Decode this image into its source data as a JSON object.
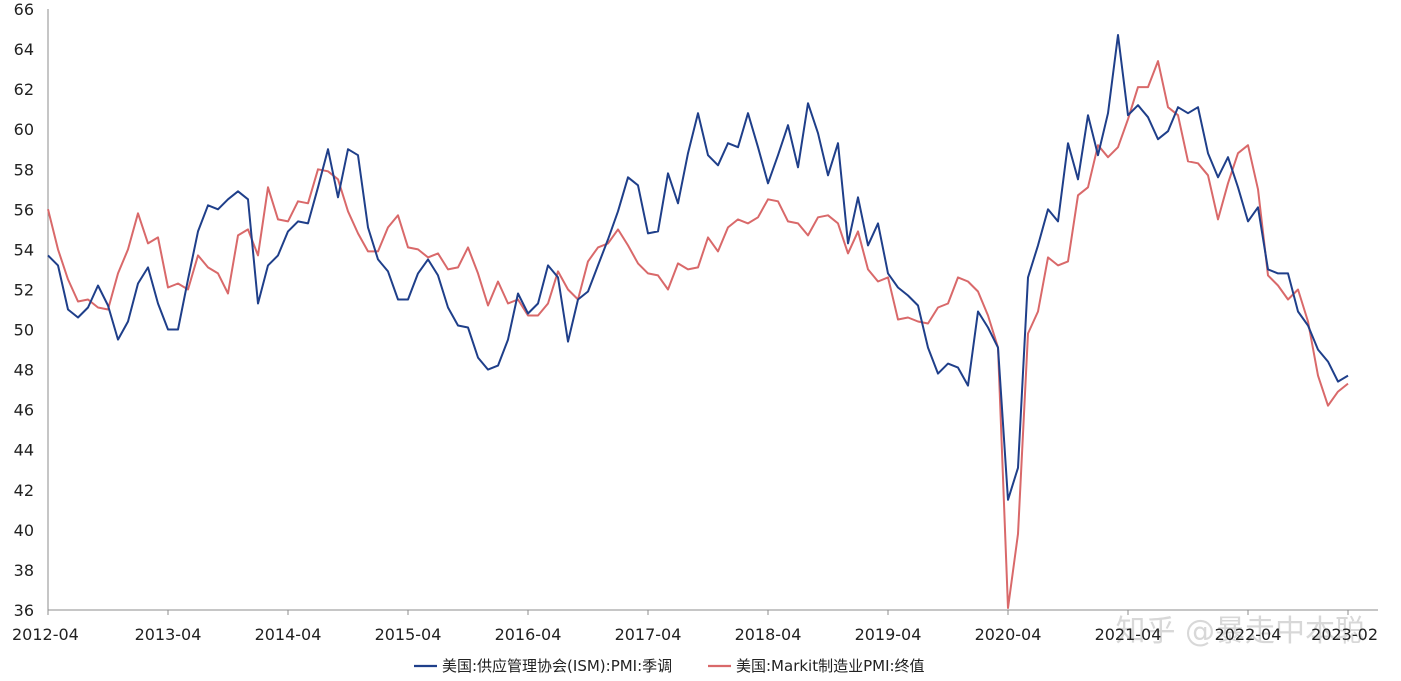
{
  "chart_data": {
    "type": "line",
    "title": "",
    "xlabel": "",
    "ylabel": "",
    "ylim": [
      36,
      66
    ],
    "y_ticks": [
      36,
      38,
      40,
      42,
      44,
      46,
      48,
      50,
      52,
      54,
      56,
      58,
      60,
      62,
      64,
      66
    ],
    "x_start": "2012-04",
    "x_end": "2023-02",
    "x_tick_labels": [
      "2012-04",
      "2013-04",
      "2014-04",
      "2015-04",
      "2016-04",
      "2017-04",
      "2018-04",
      "2019-04",
      "2020-04",
      "2021-04",
      "2022-04",
      "2023-02"
    ],
    "grid": false,
    "legend_position": "bottom",
    "watermark": "知乎 @暴走中本聪",
    "series": [
      {
        "name": "美国:供应管理协会(ISM):PMI:季调",
        "color": "#1f3f8a",
        "values": [
          53.7,
          53.2,
          51.0,
          50.6,
          51.1,
          52.2,
          51.2,
          49.5,
          50.4,
          52.3,
          53.1,
          51.3,
          50.0,
          50.0,
          52.5,
          54.9,
          56.2,
          56.0,
          56.5,
          56.9,
          56.5,
          51.3,
          53.2,
          53.7,
          54.9,
          55.4,
          55.3,
          57.1,
          59.0,
          56.6,
          59.0,
          58.7,
          55.1,
          53.5,
          52.9,
          51.5,
          51.5,
          52.8,
          53.5,
          52.7,
          51.1,
          50.2,
          50.1,
          48.6,
          48.0,
          48.2,
          49.5,
          51.8,
          50.8,
          51.3,
          53.2,
          52.6,
          49.4,
          51.5,
          51.9,
          53.2,
          54.5,
          55.9,
          57.6,
          57.2,
          54.8,
          54.9,
          57.8,
          56.3,
          58.8,
          60.8,
          58.7,
          58.2,
          59.3,
          59.1,
          60.8,
          59.1,
          57.3,
          58.7,
          60.2,
          58.1,
          61.3,
          59.8,
          57.7,
          59.3,
          54.3,
          56.6,
          54.2,
          55.3,
          52.8,
          52.1,
          51.7,
          51.2,
          49.1,
          47.8,
          48.3,
          48.1,
          47.2,
          50.9,
          50.1,
          49.1,
          41.5,
          43.1,
          52.6,
          54.2,
          56.0,
          55.4,
          59.3,
          57.5,
          60.7,
          58.7,
          60.8,
          64.7,
          60.7,
          61.2,
          60.6,
          59.5,
          59.9,
          61.1,
          60.8,
          61.1,
          58.8,
          57.6,
          58.6,
          57.1,
          55.4,
          56.1,
          53.0,
          52.8,
          52.8,
          50.9,
          50.2,
          49.0,
          48.4,
          47.4,
          47.7
        ]
      },
      {
        "name": "美国:Markit制造业PMI:终值",
        "color": "#d9696a",
        "values": [
          56.0,
          54.0,
          52.5,
          51.4,
          51.5,
          51.1,
          51.0,
          52.8,
          54.0,
          55.8,
          54.3,
          54.6,
          52.1,
          52.3,
          52.0,
          53.7,
          53.1,
          52.8,
          51.8,
          54.7,
          55.0,
          53.7,
          57.1,
          55.5,
          55.4,
          56.4,
          56.3,
          58.0,
          57.9,
          57.5,
          55.9,
          54.8,
          53.9,
          53.9,
          55.1,
          55.7,
          54.1,
          54.0,
          53.6,
          53.8,
          53.0,
          53.1,
          54.1,
          52.8,
          51.2,
          52.4,
          51.3,
          51.5,
          50.7,
          50.7,
          51.3,
          52.9,
          52.0,
          51.5,
          53.4,
          54.1,
          54.3,
          55.0,
          54.2,
          53.3,
          52.8,
          52.7,
          52.0,
          53.3,
          53.0,
          53.1,
          54.6,
          53.9,
          55.1,
          55.5,
          55.3,
          55.6,
          56.5,
          56.4,
          55.4,
          55.3,
          54.7,
          55.6,
          55.7,
          55.3,
          53.8,
          54.9,
          53.0,
          52.4,
          52.6,
          50.5,
          50.6,
          50.4,
          50.3,
          51.1,
          51.3,
          52.6,
          52.4,
          51.9,
          50.7,
          49.1,
          36.1,
          39.8,
          49.8,
          50.9,
          53.6,
          53.2,
          53.4,
          56.7,
          57.1,
          59.2,
          58.6,
          59.1,
          60.5,
          62.1,
          62.1,
          63.4,
          61.1,
          60.7,
          58.4,
          58.3,
          57.7,
          55.5,
          57.3,
          58.8,
          59.2,
          57.0,
          52.7,
          52.2,
          51.5,
          52.0,
          50.4,
          47.7,
          46.2,
          46.9,
          47.3
        ]
      }
    ]
  }
}
